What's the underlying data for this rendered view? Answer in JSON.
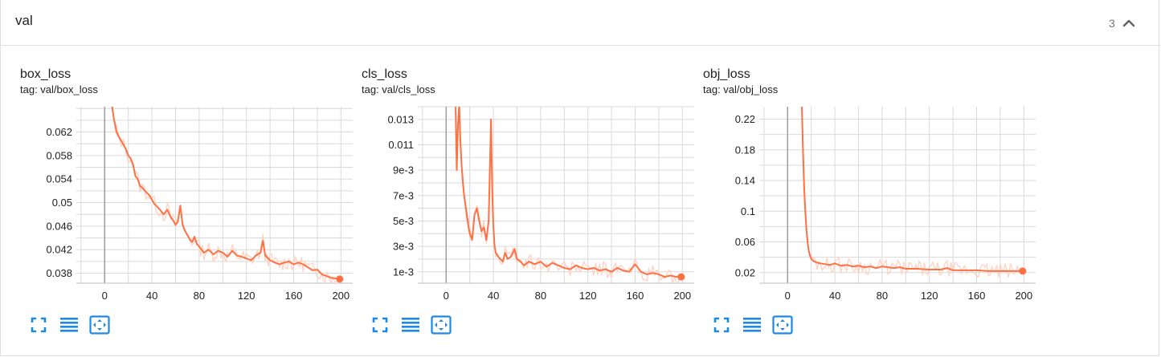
{
  "group": {
    "title": "val",
    "count": "3",
    "collapse_icon": "chevron-up-icon"
  },
  "colors": {
    "series": "#ff7043",
    "raw": "#ffd2c2",
    "grid": "#d9d9d9",
    "axis": "#9e9e9e",
    "toolbar": "#1e88e5"
  },
  "toolbar_icons": [
    "fullscreen-icon",
    "toggle-log-scale-icon",
    "fit-domain-icon"
  ],
  "cards": [
    {
      "title": "box_loss",
      "tag": "tag: val/box_loss"
    },
    {
      "title": "cls_loss",
      "tag": "tag: val/cls_loss"
    },
    {
      "title": "obj_loss",
      "tag": "tag: val/obj_loss"
    }
  ],
  "chart_data": [
    {
      "type": "line",
      "title": "box_loss",
      "xlabel": "",
      "ylabel": "",
      "xlim": [
        -24,
        210
      ],
      "ylim": [
        0.0363,
        0.0663
      ],
      "xticks": [
        0,
        40,
        80,
        120,
        160,
        200
      ],
      "yticks": [
        0.038,
        0.042,
        0.046,
        0.05,
        0.054,
        0.058,
        0.062
      ],
      "ytick_labels": [
        "0.038",
        "0.042",
        "0.046",
        "0.05",
        "0.054",
        "0.058",
        "0.062"
      ],
      "grid": true,
      "series": [
        {
          "x": [
            6,
            8,
            10,
            12,
            14,
            16,
            18,
            20,
            22,
            24,
            26,
            28,
            30,
            32,
            35,
            38,
            40,
            42,
            45,
            48,
            50,
            53,
            56,
            58,
            60,
            62,
            64,
            66,
            68,
            70,
            72,
            74,
            76,
            78,
            80,
            84,
            88,
            92,
            96,
            100,
            104,
            108,
            112,
            116,
            120,
            124,
            128,
            132,
            134,
            136,
            140,
            144,
            148,
            152,
            156,
            160,
            164,
            168,
            172,
            176,
            180,
            184,
            188,
            192,
            196,
            199
          ],
          "y": [
            0.0667,
            0.064,
            0.062,
            0.0612,
            0.0605,
            0.0598,
            0.0591,
            0.058,
            0.0575,
            0.0565,
            0.0545,
            0.054,
            0.0528,
            0.0525,
            0.0518,
            0.0512,
            0.0505,
            0.0498,
            0.0492,
            0.0485,
            0.048,
            0.0488,
            0.0475,
            0.047,
            0.0462,
            0.0468,
            0.0495,
            0.0462,
            0.0452,
            0.0445,
            0.0438,
            0.0433,
            0.0442,
            0.043,
            0.0425,
            0.0415,
            0.042,
            0.0412,
            0.0418,
            0.0415,
            0.0408,
            0.0418,
            0.041,
            0.0408,
            0.0405,
            0.0402,
            0.041,
            0.0415,
            0.0435,
            0.041,
            0.0402,
            0.0398,
            0.0395,
            0.0398,
            0.04,
            0.0395,
            0.0398,
            0.0395,
            0.039,
            0.0385,
            0.0386,
            0.0378,
            0.0375,
            0.0372,
            0.0371,
            0.037
          ]
        }
      ]
    },
    {
      "type": "line",
      "title": "cls_loss",
      "xlabel": "",
      "ylabel": "",
      "xlim": [
        -24,
        210
      ],
      "ylim": [
        0.0001,
        0.014
      ],
      "xticks": [
        0,
        40,
        80,
        120,
        160,
        200
      ],
      "yticks": [
        0.001,
        0.003,
        0.005,
        0.007,
        0.009,
        0.011,
        0.013
      ],
      "ytick_labels": [
        "1e-3",
        "3e-3",
        "5e-3",
        "7e-3",
        "9e-3",
        "0.011",
        "0.013"
      ],
      "grid": true,
      "series": [
        {
          "x": [
            8,
            9,
            10,
            11,
            12,
            13,
            14,
            15,
            16,
            17,
            18,
            19,
            20,
            22,
            24,
            26,
            28,
            30,
            32,
            34,
            36,
            37,
            38,
            39,
            40,
            41,
            42,
            44,
            46,
            48,
            50,
            52,
            55,
            58,
            60,
            63,
            66,
            70,
            75,
            80,
            85,
            90,
            95,
            100,
            105,
            110,
            115,
            120,
            125,
            130,
            135,
            140,
            145,
            150,
            155,
            160,
            165,
            170,
            175,
            180,
            185,
            190,
            195,
            199
          ],
          "y": [
            0.0142,
            0.009,
            0.0125,
            0.0142,
            0.0115,
            0.0095,
            0.0082,
            0.0072,
            0.0065,
            0.0058,
            0.0052,
            0.0045,
            0.004,
            0.0035,
            0.0055,
            0.006,
            0.005,
            0.0042,
            0.0045,
            0.0035,
            0.005,
            0.009,
            0.013,
            0.0075,
            0.0045,
            0.003,
            0.0025,
            0.0022,
            0.002,
            0.0018,
            0.0025,
            0.002,
            0.0022,
            0.0028,
            0.002,
            0.0018,
            0.0015,
            0.0018,
            0.0016,
            0.0018,
            0.0014,
            0.0017,
            0.0015,
            0.0013,
            0.0012,
            0.0015,
            0.0013,
            0.0012,
            0.0013,
            0.0011,
            0.0012,
            0.001,
            0.0013,
            0.0011,
            0.001,
            0.0016,
            0.001,
            0.0008,
            0.0009,
            0.0008,
            0.0006,
            0.0007,
            0.0006,
            0.0006
          ]
        }
      ]
    },
    {
      "type": "line",
      "title": "obj_loss",
      "xlabel": "",
      "ylabel": "",
      "xlim": [
        -24,
        210
      ],
      "ylim": [
        0.0062,
        0.2362
      ],
      "xticks": [
        0,
        40,
        80,
        120,
        160,
        200
      ],
      "yticks": [
        0.02,
        0.06,
        0.1,
        0.14,
        0.18,
        0.22
      ],
      "ytick_labels": [
        "0.02",
        "0.06",
        "0.1",
        "0.14",
        "0.18",
        "0.22"
      ],
      "grid": true,
      "series": [
        {
          "x": [
            12,
            13,
            14,
            15,
            16,
            17,
            18,
            19,
            20,
            22,
            25,
            28,
            32,
            36,
            40,
            45,
            50,
            55,
            60,
            65,
            70,
            75,
            80,
            85,
            90,
            95,
            100,
            110,
            120,
            130,
            135,
            140,
            150,
            160,
            170,
            180,
            190,
            199
          ],
          "y": [
            0.24,
            0.18,
            0.13,
            0.1,
            0.075,
            0.058,
            0.048,
            0.042,
            0.038,
            0.035,
            0.033,
            0.032,
            0.031,
            0.03,
            0.032,
            0.029,
            0.03,
            0.028,
            0.029,
            0.027,
            0.028,
            0.026,
            0.028,
            0.027,
            0.026,
            0.027,
            0.025,
            0.025,
            0.024,
            0.024,
            0.026,
            0.023,
            0.023,
            0.023,
            0.022,
            0.022,
            0.022,
            0.022
          ]
        }
      ]
    }
  ]
}
